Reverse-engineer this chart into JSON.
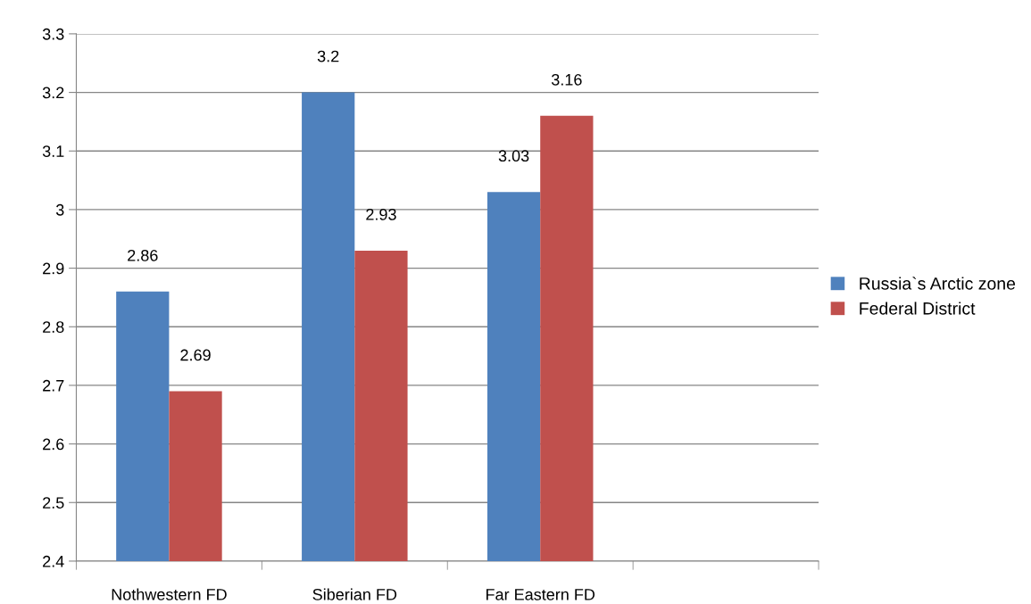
{
  "chart_data": {
    "type": "bar",
    "categories": [
      "Nothwestern FD",
      "Siberian FD",
      "Far Eastern FD",
      null
    ],
    "series": [
      {
        "name": "Russia`s Arctic zone",
        "color": "#4f81bd",
        "values": [
          2.86,
          3.2,
          3.03,
          null
        ]
      },
      {
        "name": "Federal District",
        "color": "#c0504d",
        "values": [
          2.69,
          2.93,
          3.16,
          null
        ]
      }
    ],
    "ylim": [
      2.4,
      3.3
    ],
    "yticks": [
      2.4,
      2.5,
      2.6,
      2.7,
      2.8,
      2.9,
      3,
      3.1,
      3.2,
      3.3
    ],
    "grid": "y",
    "legend": "right",
    "data_labels": true
  }
}
